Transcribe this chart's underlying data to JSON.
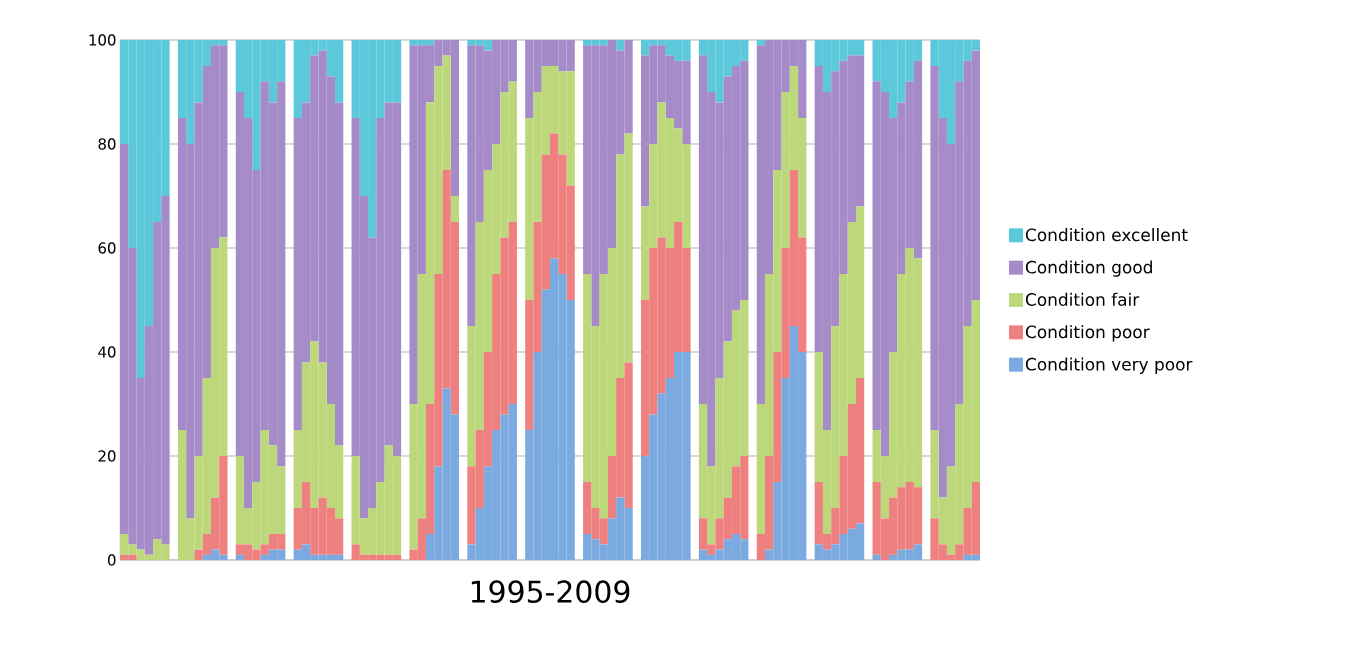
{
  "chart_data": {
    "type": "bar",
    "stacked": true,
    "xlabel": "1995-2009",
    "categories": [
      null,
      null,
      null,
      null,
      null,
      null,
      null,
      null,
      null,
      null,
      null,
      null,
      null,
      null,
      null,
      null,
      null,
      null,
      null,
      null,
      null,
      null,
      null,
      null,
      null,
      null,
      null,
      null,
      null,
      null,
      null,
      null,
      null,
      null,
      null,
      null,
      null,
      null,
      null,
      null,
      null,
      null,
      null,
      null,
      null,
      null,
      null,
      null,
      null,
      null,
      null,
      null,
      null,
      null,
      null,
      null,
      null,
      null,
      null,
      null,
      null,
      null,
      null,
      null,
      null,
      null,
      null,
      null,
      null,
      null,
      null,
      null,
      null,
      null,
      null,
      null,
      null,
      null,
      null,
      null,
      null,
      null,
      null,
      null,
      null,
      null,
      null,
      null,
      null,
      null,
      null,
      null,
      null,
      null,
      null,
      null,
      null,
      null,
      null,
      null,
      null,
      null,
      null,
      null
    ],
    "series": [
      {
        "name": "Condition very poor",
        "color": "#7aaae0",
        "values": [
          0,
          0,
          0,
          0,
          0,
          0,
          null,
          0,
          0,
          0,
          1,
          2,
          1,
          null,
          1,
          0,
          0,
          1,
          2,
          2,
          null,
          2,
          3,
          1,
          1,
          1,
          1,
          null,
          0,
          0,
          0,
          0,
          0,
          0,
          null,
          0,
          0,
          5,
          18,
          33,
          28,
          null,
          3,
          10,
          18,
          25,
          28,
          30,
          null,
          25,
          40,
          52,
          58,
          55,
          50,
          null,
          5,
          4,
          3,
          8,
          12,
          10,
          null,
          20,
          28,
          32,
          35,
          40,
          40,
          null,
          2,
          1,
          2,
          4,
          5,
          4,
          null,
          0,
          2,
          15,
          35,
          45,
          40,
          null,
          3,
          2,
          3,
          5,
          6,
          7,
          null,
          1,
          0,
          1,
          2,
          2,
          3,
          null,
          0,
          0,
          0,
          0,
          1,
          1
        ]
      },
      {
        "name": "Condition poor",
        "color": "#ee8080",
        "values": [
          1,
          1,
          0,
          0,
          0,
          0,
          null,
          0,
          0,
          2,
          4,
          10,
          19,
          null,
          2,
          3,
          2,
          2,
          3,
          3,
          null,
          8,
          12,
          9,
          11,
          9,
          7,
          null,
          3,
          1,
          1,
          1,
          1,
          1,
          null,
          2,
          8,
          25,
          37,
          42,
          37,
          null,
          15,
          15,
          22,
          30,
          34,
          35,
          null,
          25,
          25,
          26,
          24,
          23,
          22,
          null,
          10,
          6,
          5,
          12,
          23,
          28,
          null,
          30,
          32,
          30,
          25,
          25,
          20,
          null,
          6,
          2,
          6,
          8,
          13,
          16,
          null,
          5,
          18,
          25,
          25,
          30,
          22,
          null,
          12,
          3,
          7,
          15,
          24,
          28,
          null,
          14,
          8,
          11,
          12,
          13,
          11,
          null,
          8,
          3,
          1,
          3,
          9,
          14
        ]
      },
      {
        "name": "Condition fair",
        "color": "#bcd87a",
        "values": [
          4,
          2,
          2,
          1,
          4,
          3,
          null,
          25,
          8,
          18,
          30,
          48,
          42,
          null,
          17,
          7,
          13,
          22,
          17,
          13,
          null,
          15,
          23,
          32,
          26,
          20,
          14,
          null,
          17,
          7,
          9,
          14,
          21,
          19,
          null,
          28,
          47,
          58,
          40,
          22,
          5,
          null,
          27,
          40,
          35,
          25,
          28,
          27,
          null,
          35,
          25,
          17,
          13,
          16,
          22,
          null,
          40,
          35,
          47,
          40,
          43,
          44,
          null,
          18,
          20,
          26,
          25,
          18,
          20,
          null,
          22,
          15,
          27,
          30,
          30,
          30,
          null,
          25,
          35,
          35,
          30,
          20,
          23,
          null,
          25,
          20,
          35,
          35,
          35,
          33,
          null,
          10,
          12,
          28,
          41,
          45,
          44,
          null,
          17,
          9,
          17,
          27,
          35,
          35
        ]
      },
      {
        "name": "Condition good",
        "color": "#a58cc8",
        "values": [
          75,
          57,
          33,
          44,
          61,
          67,
          null,
          60,
          72,
          68,
          60,
          39,
          37,
          null,
          70,
          75,
          60,
          67,
          66,
          74,
          null,
          60,
          50,
          55,
          60,
          63,
          66,
          null,
          65,
          62,
          52,
          70,
          66,
          68,
          null,
          69,
          44,
          11,
          5,
          3,
          30,
          null,
          54,
          34,
          23,
          20,
          10,
          8,
          null,
          15,
          10,
          5,
          5,
          6,
          6,
          null,
          44,
          54,
          44,
          40,
          20,
          18,
          null,
          29,
          19,
          11,
          12,
          13,
          16,
          null,
          67,
          72,
          53,
          51,
          47,
          46,
          null,
          69,
          45,
          25,
          10,
          5,
          15,
          null,
          55,
          65,
          49,
          41,
          32,
          29,
          null,
          67,
          70,
          45,
          33,
          32,
          38,
          null,
          70,
          73,
          62,
          62,
          51,
          48
        ]
      },
      {
        "name": "Condition excellent",
        "color": "#5bc8dc",
        "values": [
          20,
          40,
          65,
          55,
          35,
          30,
          null,
          15,
          20,
          12,
          5,
          1,
          1,
          null,
          10,
          15,
          25,
          8,
          12,
          8,
          null,
          15,
          12,
          3,
          2,
          7,
          12,
          null,
          15,
          30,
          38,
          15,
          12,
          12,
          null,
          1,
          1,
          1,
          0,
          0,
          0,
          null,
          1,
          1,
          2,
          0,
          0,
          0,
          null,
          0,
          0,
          0,
          0,
          0,
          0,
          null,
          1,
          1,
          1,
          0,
          2,
          0,
          null,
          3,
          1,
          1,
          3,
          4,
          4,
          null,
          3,
          10,
          12,
          7,
          5,
          4,
          null,
          1,
          0,
          0,
          0,
          0,
          0,
          null,
          5,
          10,
          6,
          4,
          3,
          3,
          null,
          8,
          10,
          15,
          12,
          8,
          4,
          null,
          5,
          15,
          20,
          8,
          4,
          2
        ]
      }
    ],
    "ylim": [
      0,
      100
    ],
    "yticks": [
      0,
      20,
      40,
      60,
      80,
      100
    ],
    "grid": "y",
    "legend": "right"
  }
}
